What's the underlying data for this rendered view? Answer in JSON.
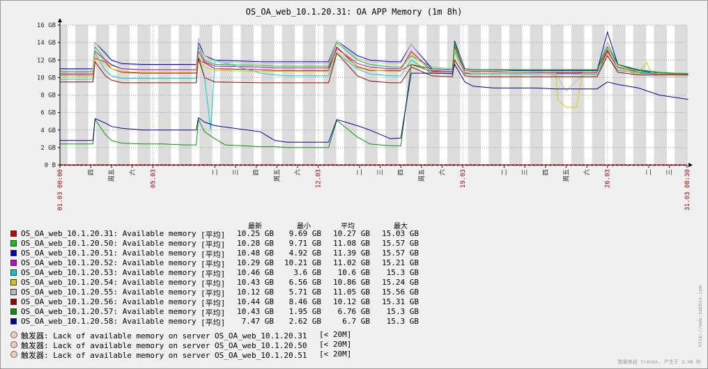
{
  "title": "OS_OA_web_10.1.20.31: OA APP Memory (1m 8h)",
  "colors": [
    "#cc0000",
    "#00cc00",
    "#0000cc",
    "#cc00cc",
    "#00cccc",
    "#cccc00",
    "#bbbbbb",
    "#990000",
    "#009900",
    "#000099"
  ],
  "legend": {
    "headers": [
      "最新",
      "最小",
      "平均",
      "最大"
    ],
    "items": [
      {
        "name": "OS_OA_web_10.1.20.31: Available memory",
        "func": "[平均]",
        "last": "10.25 GB",
        "min": "9.69 GB",
        "avg": "10.27 GB",
        "max": "15.03 GB"
      },
      {
        "name": "OS_OA_web_10.1.20.50: Available memory",
        "func": "[平均]",
        "last": "10.28 GB",
        "min": "9.71 GB",
        "avg": "11.08 GB",
        "max": "15.57 GB"
      },
      {
        "name": "OS_OA_web_10.1.20.51: Available memory",
        "func": "[平均]",
        "last": "10.48 GB",
        "min": "4.92 GB",
        "avg": "11.39 GB",
        "max": "15.57 GB"
      },
      {
        "name": "OS_OA_web_10.1.20.52: Available memory",
        "func": "[平均]",
        "last": "10.29 GB",
        "min": "10.21 GB",
        "avg": "11.02 GB",
        "max": "15.21 GB"
      },
      {
        "name": "OS_OA_web_10.1.20.53: Available memory",
        "func": "[平均]",
        "last": "10.46 GB",
        "min": "3.6 GB",
        "avg": "10.6 GB",
        "max": "15.3 GB"
      },
      {
        "name": "OS_OA_web_10.1.20.54: Available memory",
        "func": "[平均]",
        "last": "10.43 GB",
        "min": "6.56 GB",
        "avg": "10.86 GB",
        "max": "15.24 GB"
      },
      {
        "name": "OS_OA_web_10.1.20.55: Available memory",
        "func": "[平均]",
        "last": "10.12 GB",
        "min": "5.71 GB",
        "avg": "11.05 GB",
        "max": "15.56 GB"
      },
      {
        "name": "OS_OA_web_10.1.20.56: Available memory",
        "func": "[平均]",
        "last": "10.44 GB",
        "min": "8.46 GB",
        "avg": "10.12 GB",
        "max": "15.31 GB"
      },
      {
        "name": "OS_OA_web_10.1.20.57: Available memory",
        "func": "[平均]",
        "last": "10.43 GB",
        "min": "1.95 GB",
        "avg": "6.76 GB",
        "max": "15.3 GB"
      },
      {
        "name": "OS_OA_web_10.1.20.58: Available memory",
        "func": "[平均]",
        "last": "7.47 GB",
        "min": "2.62 GB",
        "avg": "6.7 GB",
        "max": "15.3 GB"
      }
    ]
  },
  "triggers": [
    {
      "name": "触发器: Lack of available memory on server OS_OA_web_10.1.20.31",
      "threshold": "[< 20M]"
    },
    {
      "name": "触发器: Lack of available memory on server OS_OA_web_10.1.20.50",
      "threshold": "[< 20M]"
    },
    {
      "name": "触发器: Lack of available memory on server OS_OA_web_10.1.20.51",
      "threshold": "[< 20M]"
    }
  ],
  "side_text": "http://www.zabbix.com",
  "footer": "数据来自 trends. 产生于 3.46 秒",
  "chart_data": {
    "type": "line",
    "title": "OS_OA_web_10.1.20.31: OA APP Memory (1m 8h)",
    "xlabel": "",
    "ylabel": "",
    "x_range": [
      "01.03 00:00",
      "31.03 08:30"
    ],
    "ylim": [
      0,
      16
    ],
    "y_unit": "GB",
    "y_ticks": [
      "0 B",
      "2 GB",
      "4 GB",
      "6 GB",
      "8 GB",
      "10 GB",
      "12 GB",
      "14 GB",
      "16 GB"
    ],
    "x_tick_labels": [
      {
        "day": 0,
        "label": "01.03 00:00",
        "red": true
      },
      {
        "day": 1.5,
        "label": "四",
        "red": false
      },
      {
        "day": 2.5,
        "label": "周五",
        "red": false
      },
      {
        "day": 3.5,
        "label": "六",
        "red": false
      },
      {
        "day": 4.5,
        "label": "05.03",
        "red": true
      },
      {
        "day": 7.5,
        "label": "二",
        "red": false
      },
      {
        "day": 8.5,
        "label": "三",
        "red": false
      },
      {
        "day": 9.5,
        "label": "四",
        "red": false
      },
      {
        "day": 10.5,
        "label": "周五",
        "red": false
      },
      {
        "day": 11.5,
        "label": "六",
        "red": false
      },
      {
        "day": 12.5,
        "label": "12.03",
        "red": true
      },
      {
        "day": 14.5,
        "label": "二",
        "red": false
      },
      {
        "day": 15.5,
        "label": "三",
        "red": false
      },
      {
        "day": 16.5,
        "label": "四",
        "red": false
      },
      {
        "day": 17.5,
        "label": "周五",
        "red": false
      },
      {
        "day": 18.5,
        "label": "六",
        "red": false
      },
      {
        "day": 19.5,
        "label": "19.03",
        "red": true
      },
      {
        "day": 21.5,
        "label": "二",
        "red": false
      },
      {
        "day": 22.5,
        "label": "三",
        "red": false
      },
      {
        "day": 23.5,
        "label": "四",
        "red": false
      },
      {
        "day": 24.5,
        "label": "周五",
        "red": false
      },
      {
        "day": 25.5,
        "label": "六",
        "red": false
      },
      {
        "day": 26.5,
        "label": "26.03",
        "red": true
      },
      {
        "day": 28.5,
        "label": "二",
        "red": false
      },
      {
        "day": 29.5,
        "label": "三",
        "red": false
      },
      {
        "day": 30.35,
        "label": "31.03 08:30",
        "red": true
      }
    ],
    "legend": "bottom",
    "grid": true,
    "series": [
      {
        "name": "OS_OA_web_10.1.20.31: Available memory",
        "x": [
          0,
          1.6,
          1.7,
          2.2,
          2.5,
          3,
          4,
          5,
          6,
          6.6,
          6.7,
          7,
          7.5,
          9.7,
          10.4,
          11,
          11.5,
          12,
          13,
          13.4,
          14.4,
          15,
          16,
          16.5,
          17,
          18,
          19,
          19.1,
          19.6,
          20,
          21,
          22,
          23,
          24,
          25,
          26,
          26.5,
          27,
          28,
          29,
          30.4
        ],
        "y": [
          10.3,
          10.3,
          12.2,
          11.8,
          11,
          10.6,
          10.5,
          10.5,
          10.5,
          10.5,
          12,
          11.7,
          11,
          10.9,
          10.8,
          10.8,
          10.8,
          10.8,
          10.8,
          13.5,
          11.2,
          10.8,
          10.8,
          10.8,
          11.5,
          10.7,
          10.7,
          13.6,
          10.5,
          10.5,
          10.5,
          10.5,
          10.5,
          10.5,
          10.5,
          10.5,
          13,
          11.2,
          10.6,
          10.4,
          10.3
        ]
      },
      {
        "name": "OS_OA_web_10.1.20.50: Available memory",
        "x": [
          0,
          1.6,
          1.7,
          2.2,
          2.5,
          3,
          4,
          5,
          6,
          6.6,
          6.7,
          7,
          7.5,
          9.7,
          10.4,
          11,
          11.5,
          12,
          13,
          13.4,
          14.4,
          15,
          16,
          16.5,
          17,
          18,
          19,
          19.1,
          19.6,
          20,
          21,
          22,
          23,
          24,
          25,
          26,
          26.5,
          27,
          28,
          29,
          30.4
        ],
        "y": [
          10.7,
          10.7,
          13.5,
          12,
          11.5,
          11,
          10.9,
          10.9,
          10.9,
          10.9,
          13.5,
          12,
          11.5,
          11.4,
          11.3,
          11.3,
          11.3,
          11.3,
          11.3,
          14,
          12,
          11.5,
          11.2,
          11.2,
          12.5,
          11.2,
          11,
          13.8,
          11,
          10.9,
          10.9,
          10.8,
          10.8,
          10.8,
          10.8,
          10.8,
          14,
          11.5,
          10.6,
          10.5,
          10.3
        ]
      },
      {
        "name": "OS_OA_web_10.1.20.51: Available memory",
        "x": [
          0,
          1.6,
          1.7,
          2.2,
          2.5,
          3,
          4,
          5,
          6,
          6.6,
          6.7,
          7,
          7.5,
          9.7,
          10.4,
          11,
          11.5,
          12,
          13,
          13.4,
          14.4,
          15,
          16,
          16.5,
          17,
          18,
          19,
          19.1,
          19.6,
          20,
          21,
          22,
          23,
          24,
          25,
          26,
          26.5,
          27,
          28,
          29,
          30.4
        ],
        "y": [
          11,
          11,
          14,
          12.8,
          12,
          11.6,
          11.5,
          11.5,
          11.5,
          11.5,
          14,
          12.5,
          12,
          11.8,
          11.8,
          11.8,
          11.8,
          11.8,
          11.8,
          14.2,
          12.5,
          12,
          11.8,
          11.8,
          13.8,
          11,
          10.9,
          14.2,
          11,
          10.9,
          10.9,
          10.8,
          10.8,
          10.8,
          10.8,
          10.8,
          15.2,
          11.5,
          10.8,
          10.5,
          10.4
        ]
      },
      {
        "name": "OS_OA_web_10.1.20.52: Available memory",
        "x": [
          0,
          1.6,
          1.7,
          2.2,
          2.5,
          3,
          4,
          5,
          6,
          6.6,
          6.7,
          7,
          7.5,
          9.7,
          10.4,
          11,
          11.5,
          12,
          13,
          13.4,
          14.4,
          15,
          16,
          16.5,
          17,
          18,
          19,
          19.1,
          19.6,
          20,
          21,
          22,
          23,
          24,
          25,
          26,
          26.5,
          27,
          28,
          29,
          30.4
        ],
        "y": [
          10.5,
          10.5,
          13,
          12,
          11.4,
          11,
          10.9,
          10.9,
          10.9,
          10.9,
          13,
          11.8,
          11.3,
          11.2,
          11.1,
          11.1,
          11.1,
          11.1,
          11.1,
          13.3,
          11.6,
          11.2,
          11,
          11,
          13,
          10.8,
          10.7,
          13.5,
          10.8,
          10.7,
          10.7,
          10.6,
          10.6,
          10.6,
          10.6,
          10.6,
          13.2,
          11,
          10.5,
          10.4,
          10.3
        ]
      },
      {
        "name": "OS_OA_web_10.1.20.53: Available memory",
        "x": [
          0,
          1.6,
          1.7,
          2.2,
          2.5,
          3,
          4,
          5,
          6,
          6.6,
          6.7,
          7,
          7.3,
          7.5,
          9.7,
          10.4,
          11,
          11.5,
          12,
          13,
          13.4,
          14.4,
          15,
          16,
          16.5,
          17,
          18,
          19,
          19.1,
          19.6,
          20,
          21,
          22,
          23,
          24,
          25,
          26,
          26.5,
          27,
          28,
          29,
          30.4
        ],
        "y": [
          9.8,
          9.8,
          12.8,
          10.8,
          10.2,
          9.9,
          9.9,
          9.9,
          9.9,
          9.9,
          12.5,
          10,
          4,
          12,
          10.5,
          10.3,
          10.2,
          10.2,
          10.2,
          10.2,
          12.8,
          11,
          10.4,
          10.2,
          10.2,
          12,
          10.5,
          10.4,
          13,
          10.4,
          10.4,
          10.4,
          10.4,
          10.4,
          10.4,
          10.4,
          10.4,
          12.5,
          10.8,
          10.5,
          10.5,
          10.5
        ]
      },
      {
        "name": "OS_OA_web_10.1.20.54: Available memory",
        "x": [
          0,
          1.6,
          1.7,
          2.2,
          2.5,
          3,
          4,
          5,
          6,
          6.6,
          6.7,
          7,
          7.5,
          9.7,
          10.4,
          11,
          11.5,
          12,
          13,
          13.4,
          14.4,
          15,
          16,
          16.5,
          17,
          18,
          19,
          19.1,
          19.6,
          20,
          21,
          22,
          23,
          24,
          24.1,
          24.5,
          25,
          25.3,
          26,
          26.5,
          27,
          28,
          28.4,
          28.6,
          29,
          30.4
        ],
        "y": [
          10.1,
          10.1,
          12.5,
          11.5,
          11,
          10.7,
          10.6,
          10.6,
          10.6,
          10.6,
          12.5,
          11.2,
          10.8,
          10.7,
          10.7,
          10.7,
          10.7,
          10.7,
          10.7,
          13,
          11.3,
          10.9,
          10.7,
          10.7,
          12.8,
          10.6,
          10.5,
          13.2,
          10.6,
          10.5,
          10.5,
          10.5,
          10.5,
          10.5,
          7.5,
          6.6,
          6.6,
          10.5,
          10.5,
          12.8,
          11,
          10.5,
          11.7,
          10.6,
          10.4,
          10.4
        ]
      },
      {
        "name": "OS_OA_web_10.1.20.55: Available memory",
        "x": [
          0,
          1.6,
          1.7,
          2.2,
          2.5,
          3,
          4,
          5,
          6,
          6.6,
          6.7,
          7,
          7.5,
          9.7,
          10.4,
          11,
          11.5,
          12,
          13,
          13.4,
          14.4,
          15,
          16,
          16.5,
          17,
          18,
          19,
          19.1,
          19.6,
          20,
          21,
          22,
          23,
          24,
          24.5,
          25,
          25.3,
          26,
          26.5,
          27,
          28,
          29,
          30.4
        ],
        "y": [
          10.9,
          10.9,
          14,
          12.6,
          11.9,
          11.5,
          11.4,
          11.4,
          11.4,
          11.4,
          14.5,
          12.5,
          11.8,
          11.6,
          11.6,
          11.6,
          11.6,
          11.6,
          11.6,
          14.2,
          12.2,
          11.8,
          11.6,
          11.6,
          13.8,
          11.2,
          11,
          14,
          11,
          10.8,
          10.8,
          10.6,
          10.5,
          10.3,
          8.5,
          9.6,
          10.3,
          10.3,
          14,
          11,
          10.3,
          10.1,
          10.1
        ]
      },
      {
        "name": "OS_OA_web_10.1.20.56: Available memory",
        "x": [
          0,
          1.6,
          1.7,
          2.2,
          2.5,
          3,
          4,
          5,
          6,
          6.6,
          6.7,
          7,
          7.5,
          9.7,
          10.4,
          11,
          11.5,
          12,
          13,
          13.4,
          14.4,
          15,
          16,
          16.5,
          17,
          18,
          19,
          19.1,
          19.6,
          20,
          21,
          22,
          23,
          24,
          25,
          26,
          26.5,
          27,
          28,
          29,
          30.4
        ],
        "y": [
          9.5,
          9.5,
          11.8,
          10.2,
          9.7,
          9.4,
          9.4,
          9.4,
          9.4,
          9.4,
          12.2,
          10,
          9.5,
          9.4,
          9.4,
          9.4,
          9.4,
          9.4,
          9.4,
          12.8,
          10.2,
          9.6,
          9.4,
          9.4,
          11.2,
          10.2,
          10.1,
          12,
          10.2,
          10.1,
          10.1,
          10.1,
          10.1,
          10.1,
          10.1,
          10.1,
          12.5,
          10.6,
          10.3,
          10.3,
          10.3
        ]
      },
      {
        "name": "OS_OA_web_10.1.20.57: Available memory",
        "x": [
          0,
          1.6,
          1.7,
          2.2,
          2.5,
          3,
          4,
          5,
          6,
          6.6,
          6.7,
          7,
          7.5,
          8,
          9.7,
          10.4,
          11,
          11.5,
          12,
          13,
          13.4,
          14.4,
          15,
          16,
          16.5,
          17,
          18,
          19,
          19.1,
          19.6,
          20,
          21,
          22,
          23,
          24,
          25,
          26,
          26.5,
          27,
          28,
          29,
          30.4
        ],
        "y": [
          2.4,
          2.4,
          5.2,
          3.5,
          2.8,
          2.5,
          2.4,
          2.4,
          2.3,
          2.3,
          5.2,
          3.8,
          3,
          2.3,
          2.1,
          2.1,
          2,
          2,
          2,
          2,
          5.1,
          3.2,
          2.4,
          2.2,
          2.2,
          11.5,
          11,
          10.9,
          14,
          11,
          10.9,
          10.9,
          10.9,
          10.9,
          10.9,
          10.9,
          10.9,
          13.5,
          11.5,
          10.9,
          10.6,
          10.4
        ]
      },
      {
        "name": "OS_OA_web_10.1.20.58: Available memory",
        "x": [
          0,
          1.6,
          1.7,
          2.2,
          2.5,
          3,
          4,
          5,
          6,
          6.6,
          6.7,
          7,
          7.5,
          9.7,
          10.4,
          11,
          11.5,
          12,
          13,
          13.4,
          14.4,
          15,
          16,
          16.5,
          17,
          18,
          19,
          19.1,
          19.6,
          20,
          21,
          22,
          23,
          24,
          25,
          26,
          26.5,
          27,
          28,
          29,
          30.4
        ],
        "y": [
          2.8,
          2.8,
          5.3,
          4.8,
          4.4,
          4.2,
          4,
          4,
          4,
          4,
          5.4,
          4.9,
          4.5,
          3.8,
          2.8,
          2.6,
          2.6,
          2.6,
          2.6,
          5.2,
          4.5,
          4,
          3,
          3.1,
          10.5,
          10.5,
          10.5,
          11.5,
          9.5,
          9,
          8.8,
          8.8,
          8.8,
          8.7,
          8.7,
          8.7,
          9.5,
          9.2,
          8.8,
          8,
          7.5
        ]
      }
    ]
  }
}
